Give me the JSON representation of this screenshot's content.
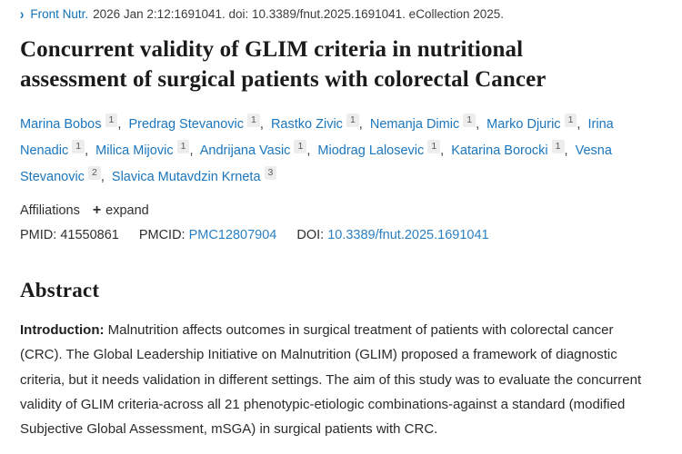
{
  "citation_bar": {
    "chevron": "›",
    "journal": "Front Nutr.",
    "details": "2026 Jan 2:12:1691041. doi: 10.3389/fnut.2025.1691041. eCollection 2025."
  },
  "title": "Concurrent validity of GLIM criteria in nutritional assessment of surgical patients with colorectal Cancer",
  "authors": [
    {
      "name": "Marina Bobos",
      "affiliation": "1"
    },
    {
      "name": "Predrag Stevanovic",
      "affiliation": "1"
    },
    {
      "name": "Rastko Zivic",
      "affiliation": "1"
    },
    {
      "name": "Nemanja Dimic",
      "affiliation": "1"
    },
    {
      "name": "Marko Djuric",
      "affiliation": "1"
    },
    {
      "name": "Irina Nenadic",
      "affiliation": "1"
    },
    {
      "name": "Milica Mijovic",
      "affiliation": "1"
    },
    {
      "name": "Andrijana Vasic",
      "affiliation": "1"
    },
    {
      "name": "Miodrag Lalosevic",
      "affiliation": "1"
    },
    {
      "name": "Katarina Borocki",
      "affiliation": "1"
    },
    {
      "name": "Vesna Stevanovic",
      "affiliation": "2"
    },
    {
      "name": "Slavica Mutavdzin Krneta",
      "affiliation": "3"
    }
  ],
  "affiliations": {
    "label": "Affiliations",
    "plus_icon": "+",
    "expand_label": "expand"
  },
  "identifiers": {
    "pmid_label": "PMID:",
    "pmid_value": "41550861",
    "pmcid_label": "PMCID:",
    "pmcid_value": "PMC12807904",
    "doi_label": "DOI:",
    "doi_value": "10.3389/fnut.2025.1691041"
  },
  "abstract": {
    "heading": "Abstract",
    "intro_label": "Introduction:",
    "intro_text": "Malnutrition affects outcomes in surgical treatment of patients with colorectal cancer (CRC). The Global Leadership Initiative on Malnutrition (GLIM) proposed a framework of diagnostic criteria, but it needs validation in different settings. The aim of this study was to evaluate the concurrent validity of GLIM criteria-across all 21 phenotypic-etiologic combinations-against a standard (modified Subjective Global Assessment, mSGA) in surgical patients with CRC."
  },
  "colors": {
    "link_blue": "#1b76bd",
    "text_dark": "#212121",
    "sup_box_bg": "#ededed"
  }
}
